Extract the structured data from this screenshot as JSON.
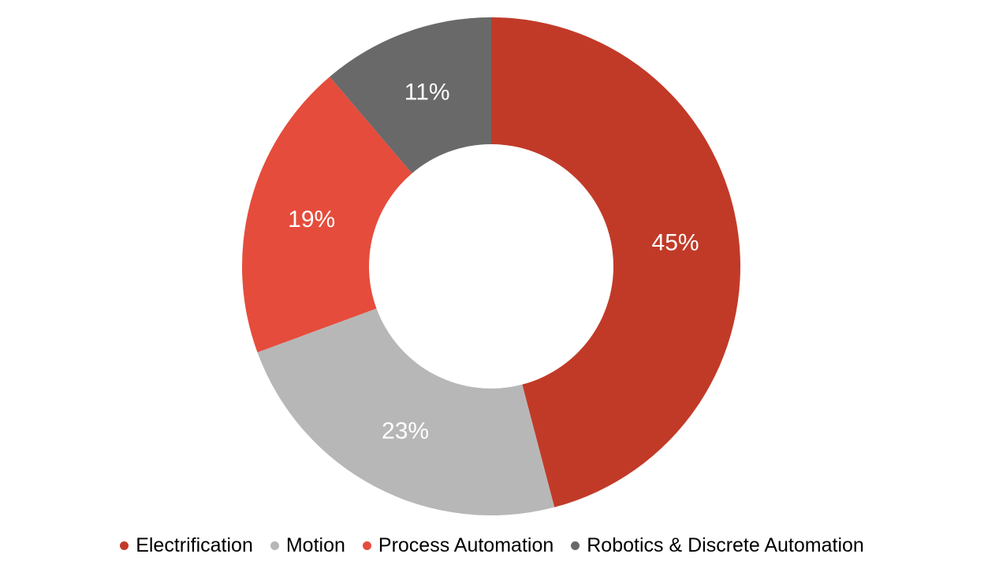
{
  "chart_data": {
    "type": "pie",
    "subtype": "donut",
    "title": "",
    "categories": [
      "Electrification",
      "Motion",
      "Process Automation",
      "Robotics & Discrete Automation"
    ],
    "series": [
      {
        "label": "Electrification",
        "value": 45,
        "data_label": "45%",
        "color": "#c13a28"
      },
      {
        "label": "Motion",
        "value": 23,
        "data_label": "23%",
        "color": "#b7b7b7"
      },
      {
        "label": "Process Automation",
        "value": 19,
        "data_label": "19%",
        "color": "#e54c3c"
      },
      {
        "label": "Robotics & Discrete Automation",
        "value": 11,
        "data_label": "11%",
        "color": "#696969"
      }
    ],
    "start_angle_deg": 0,
    "direction": "clockwise",
    "donut_hole_ratio": 0.49,
    "data_label_color": "#ffffff",
    "legend_position": "bottom",
    "grid": false,
    "background": "#ffffff"
  }
}
